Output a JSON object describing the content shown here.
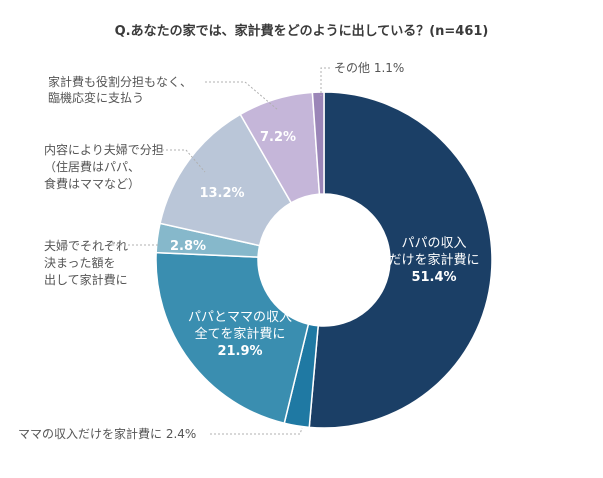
{
  "chart_data": {
    "type": "pie",
    "variant": "donut",
    "title": "Q.あなたの家では、家計費をどのように出している？(n=461)",
    "unit": "%",
    "slices": [
      {
        "key": "papa",
        "label": "パパの収入だけを家計費に",
        "lines": [
          "パパの収入",
          "だけを家計費に"
        ],
        "value": 51.4,
        "value_text": "51.4%",
        "color": "#1b3f66"
      },
      {
        "key": "mama",
        "label": "ママの収入だけを家計費に",
        "lines": [
          "ママの収入だけを家計費に"
        ],
        "value": 2.4,
        "value_text": "2.4%",
        "color": "#1f79a3"
      },
      {
        "key": "both",
        "label": "パパとママの収入全てを家計費に",
        "lines": [
          "パパとママの収入",
          "全てを家計費に"
        ],
        "value": 21.9,
        "value_text": "21.9%",
        "color": "#3a8eb0"
      },
      {
        "key": "fixed",
        "label": "夫婦でそれぞれ決まった額を出して家計費に",
        "lines": [
          "夫婦でそれぞれ",
          "決まった額を",
          "出して家計費に"
        ],
        "value": 2.8,
        "value_text": "2.8%",
        "color": "#86b8cb"
      },
      {
        "key": "split",
        "label": "内容により夫婦で分担（住居費はパパ、食費はママなど）",
        "lines": [
          "内容により夫婦で分担",
          "（住居費はパパ、",
          "食費はママなど）"
        ],
        "value": 13.2,
        "value_text": "13.2%",
        "color": "#bac6d8"
      },
      {
        "key": "adhoc",
        "label": "家計費も役割分担もなく、臨機応変に支払う",
        "lines": [
          "家計費も役割分担もなく、",
          "臨機応変に支払う"
        ],
        "value": 7.2,
        "value_text": "7.2%",
        "color": "#c5b6d9"
      },
      {
        "key": "other",
        "label": "その他",
        "lines": [
          "その他"
        ],
        "value": 1.1,
        "value_text": "1.1%",
        "color": "#9b86b8"
      }
    ]
  }
}
